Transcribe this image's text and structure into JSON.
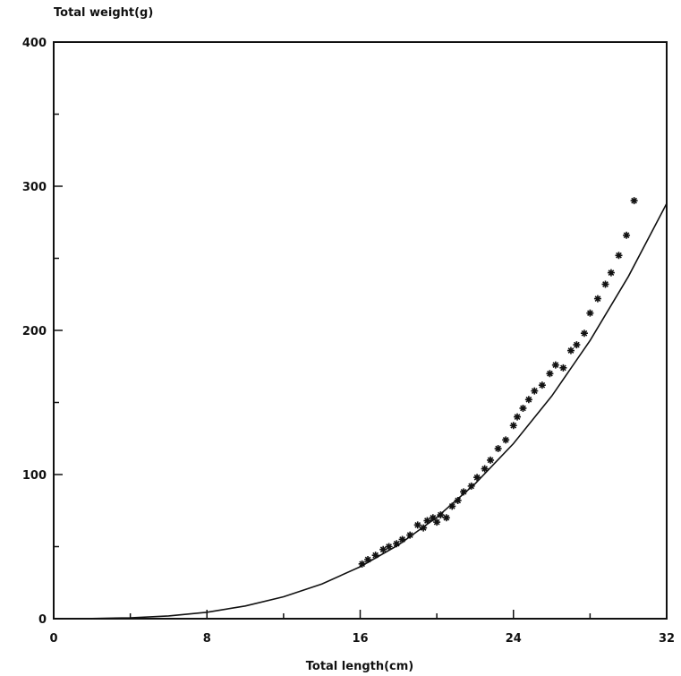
{
  "chart_data": {
    "type": "scatter",
    "title": "",
    "xlabel": "Total length(cm)",
    "ylabel": "Total weight(g)",
    "xlim": [
      0,
      32
    ],
    "ylim": [
      0,
      400
    ],
    "x_ticks": [
      0,
      8,
      16,
      24,
      32
    ],
    "y_ticks": [
      0,
      100,
      200,
      300,
      400
    ],
    "x_tick_labels": [
      "0",
      "8",
      "16",
      "24",
      "32"
    ],
    "y_tick_labels": [
      "0",
      "100",
      "200",
      "300",
      "400"
    ],
    "grid": false,
    "legend": "none",
    "colors": {
      "ink": "#111111",
      "background": "#ffffff"
    },
    "fit_curve": {
      "x": [
        2,
        4,
        6,
        8,
        10,
        12,
        14,
        16,
        18,
        20,
        22,
        24,
        26,
        28,
        30,
        32
      ],
      "y": [
        0.1,
        0.6,
        1.9,
        4.5,
        8.8,
        15.2,
        24.1,
        36,
        51.2,
        70.3,
        93.6,
        121.5,
        154.5,
        193,
        237.4,
        288
      ]
    },
    "series": [
      {
        "x": [
          16.1,
          16.4,
          16.8,
          17.2,
          17.5,
          17.9,
          18.2,
          18.6,
          19.0,
          19.3,
          19.5,
          19.8,
          20.0,
          20.2,
          20.5,
          20.8,
          21.1,
          21.4,
          21.8,
          22.1,
          22.5,
          22.8,
          23.2,
          23.6,
          24.0,
          24.2,
          24.5,
          24.8,
          25.1,
          25.5,
          25.9,
          26.2,
          26.6,
          27.0,
          27.3,
          27.7,
          28.0,
          28.4,
          28.8,
          29.1,
          29.5,
          29.9,
          30.3
        ],
        "y": [
          38,
          41,
          44,
          48,
          50,
          52,
          55,
          58,
          65,
          63,
          68,
          70,
          67,
          72,
          70,
          78,
          82,
          88,
          92,
          98,
          104,
          110,
          118,
          124,
          134,
          140,
          146,
          152,
          158,
          162,
          170,
          176,
          174,
          186,
          190,
          198,
          212,
          222,
          232,
          240,
          252,
          266,
          290
        ]
      }
    ]
  }
}
